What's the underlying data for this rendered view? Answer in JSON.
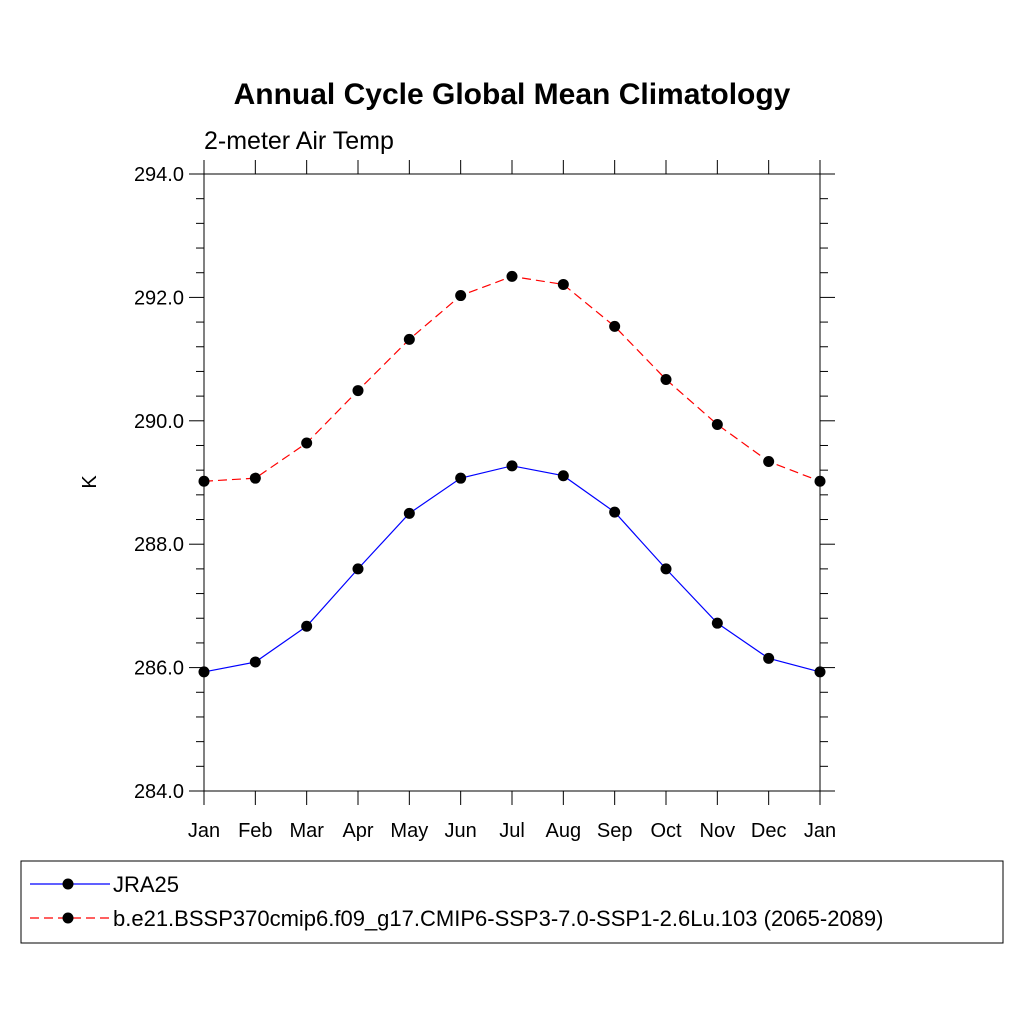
{
  "chart_data": {
    "type": "line",
    "title": "Annual Cycle Global Mean Climatology",
    "subtitle": "2-meter Air Temp",
    "ylabel": "K",
    "xlabel": "",
    "categories": [
      "Jan",
      "Feb",
      "Mar",
      "Apr",
      "May",
      "Jun",
      "Jul",
      "Aug",
      "Sep",
      "Oct",
      "Nov",
      "Dec",
      "Jan"
    ],
    "ylim": [
      284.0,
      294.0
    ],
    "yticks": [
      "284.0",
      "286.0",
      "288.0",
      "290.0",
      "292.0",
      "294.0"
    ],
    "grid": false,
    "legend_position": "bottom",
    "series": [
      {
        "name": "JRA25",
        "color": "#0000ff",
        "line_style": "solid",
        "marker": "filled-circle",
        "values": [
          285.93,
          286.09,
          286.67,
          287.6,
          288.5,
          289.07,
          289.27,
          289.11,
          288.52,
          287.6,
          286.72,
          286.15,
          285.93
        ]
      },
      {
        "name": "b.e21.BSSP370cmip6.f09_g17.CMIP6-SSP3-7.0-SSP1-2.6Lu.103 (2065-2089)",
        "color": "#ff0000",
        "line_style": "dashed",
        "marker": "filled-circle",
        "values": [
          289.02,
          289.07,
          289.64,
          290.49,
          291.32,
          292.03,
          292.34,
          292.21,
          291.53,
          290.67,
          289.94,
          289.34,
          289.02
        ]
      }
    ]
  }
}
